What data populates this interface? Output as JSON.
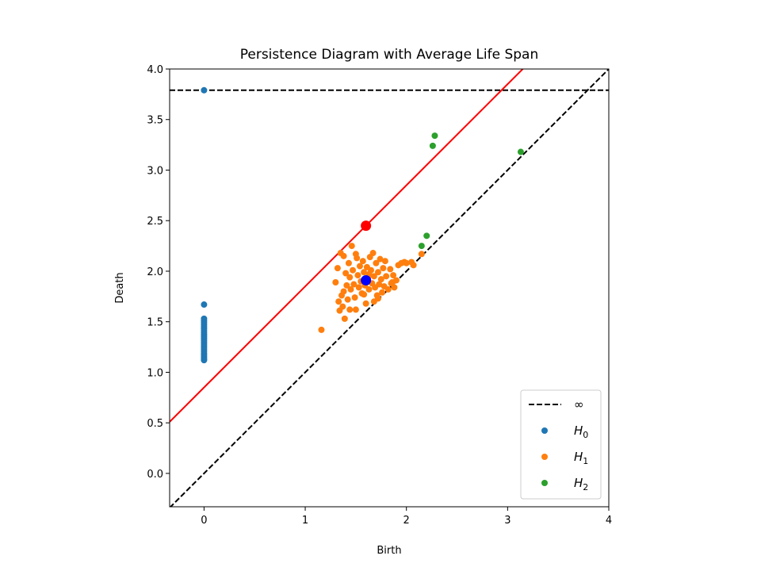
{
  "chart_data": {
    "type": "scatter",
    "title": "Persistence Diagram with Average Life Span",
    "xlabel": "Birth",
    "ylabel": "Death",
    "xlim": [
      -0.34,
      4.0
    ],
    "ylim": [
      -0.33,
      4.0
    ],
    "xticks": [
      "0",
      "1",
      "2",
      "3",
      "4"
    ],
    "xtick_values": [
      0,
      1,
      2,
      3,
      4
    ],
    "yticks": [
      "0.0",
      "0.5",
      "1.0",
      "1.5",
      "2.0",
      "2.5",
      "3.0",
      "3.5",
      "4.0"
    ],
    "ytick_values": [
      0.0,
      0.5,
      1.0,
      1.5,
      2.0,
      2.5,
      3.0,
      3.5,
      4.0
    ],
    "grid": false,
    "legend_position": "lower-right",
    "infinity_line": {
      "label": "∞",
      "y": 3.79,
      "color": "#000000"
    },
    "diagonal": {
      "color": "#000000"
    },
    "average_line": {
      "slope": 1,
      "intercept": 0.85,
      "color": "#ff0000"
    },
    "average_point": {
      "x": 1.6,
      "y": 2.45,
      "color": "#ff0000"
    },
    "mean_point": {
      "x": 1.6,
      "y": 1.91,
      "color": "#0000ff"
    },
    "series": [
      {
        "name": "H_0",
        "label_main": "H",
        "label_sub": "0",
        "color": "#1f77b4",
        "points": [
          [
            0,
            3.79
          ],
          [
            0,
            1.67
          ],
          [
            0,
            1.53
          ],
          [
            0,
            1.51
          ],
          [
            0,
            1.49
          ],
          [
            0,
            1.47
          ],
          [
            0,
            1.45
          ],
          [
            0,
            1.43
          ],
          [
            0,
            1.41
          ],
          [
            0,
            1.39
          ],
          [
            0,
            1.37
          ],
          [
            0,
            1.35
          ],
          [
            0,
            1.33
          ],
          [
            0,
            1.31
          ],
          [
            0,
            1.29
          ],
          [
            0,
            1.27
          ],
          [
            0,
            1.25
          ],
          [
            0,
            1.23
          ],
          [
            0,
            1.21
          ],
          [
            0,
            1.19
          ],
          [
            0,
            1.17
          ],
          [
            0,
            1.15
          ],
          [
            0,
            1.13
          ],
          [
            0,
            1.12
          ]
        ]
      },
      {
        "name": "H_1",
        "label_main": "H",
        "label_sub": "1",
        "color": "#ff7f0e",
        "points": [
          [
            1.16,
            1.42
          ],
          [
            1.3,
            1.89
          ],
          [
            1.32,
            2.03
          ],
          [
            1.33,
            1.7
          ],
          [
            1.34,
            1.61
          ],
          [
            1.35,
            2.18
          ],
          [
            1.36,
            1.76
          ],
          [
            1.37,
            1.65
          ],
          [
            1.38,
            2.15
          ],
          [
            1.38,
            1.8
          ],
          [
            1.39,
            1.53
          ],
          [
            1.4,
            1.98
          ],
          [
            1.41,
            1.86
          ],
          [
            1.42,
            1.72
          ],
          [
            1.43,
            2.08
          ],
          [
            1.44,
            1.94
          ],
          [
            1.45,
            1.82
          ],
          [
            1.46,
            2.25
          ],
          [
            1.47,
            2.01
          ],
          [
            1.48,
            1.87
          ],
          [
            1.49,
            1.74
          ],
          [
            1.5,
            1.62
          ],
          [
            1.51,
            2.13
          ],
          [
            1.52,
            1.96
          ],
          [
            1.53,
            1.84
          ],
          [
            1.54,
            2.05
          ],
          [
            1.55,
            1.9
          ],
          [
            1.56,
            1.78
          ],
          [
            1.57,
            2.1
          ],
          [
            1.58,
            1.99
          ],
          [
            1.59,
            1.86
          ],
          [
            1.6,
            1.68
          ],
          [
            1.61,
            2.04
          ],
          [
            1.62,
            1.93
          ],
          [
            1.63,
            1.82
          ],
          [
            1.64,
            2.14
          ],
          [
            1.65,
            2.01
          ],
          [
            1.66,
            1.88
          ],
          [
            1.67,
            2.18
          ],
          [
            1.68,
            1.95
          ],
          [
            1.68,
            1.7
          ],
          [
            1.69,
            1.84
          ],
          [
            1.7,
            2.08
          ],
          [
            1.71,
            1.76
          ],
          [
            1.72,
            1.99
          ],
          [
            1.73,
            1.87
          ],
          [
            1.74,
            2.12
          ],
          [
            1.75,
            1.92
          ],
          [
            1.76,
            1.79
          ],
          [
            1.77,
            2.03
          ],
          [
            1.78,
            1.85
          ],
          [
            1.79,
            2.1
          ],
          [
            1.8,
            1.95
          ],
          [
            1.82,
            1.82
          ],
          [
            1.84,
            2.02
          ],
          [
            1.85,
            1.88
          ],
          [
            1.87,
            1.96
          ],
          [
            1.88,
            1.84
          ],
          [
            1.9,
            1.91
          ],
          [
            1.92,
            2.06
          ],
          [
            1.95,
            2.08
          ],
          [
            1.98,
            2.09
          ],
          [
            2.0,
            2.08
          ],
          [
            2.05,
            2.09
          ],
          [
            2.07,
            2.06
          ],
          [
            2.15,
            2.17
          ],
          [
            1.44,
            1.62
          ],
          [
            1.5,
            2.17
          ],
          [
            1.58,
            1.77
          ],
          [
            1.63,
            1.97
          ],
          [
            1.72,
            1.73
          ],
          [
            1.86,
            1.89
          ]
        ]
      },
      {
        "name": "H_2",
        "label_main": "H",
        "label_sub": "2",
        "color": "#2ca02c",
        "points": [
          [
            2.28,
            3.34
          ],
          [
            2.26,
            3.24
          ],
          [
            3.13,
            3.18
          ],
          [
            2.2,
            2.35
          ],
          [
            2.15,
            2.25
          ]
        ]
      }
    ]
  }
}
